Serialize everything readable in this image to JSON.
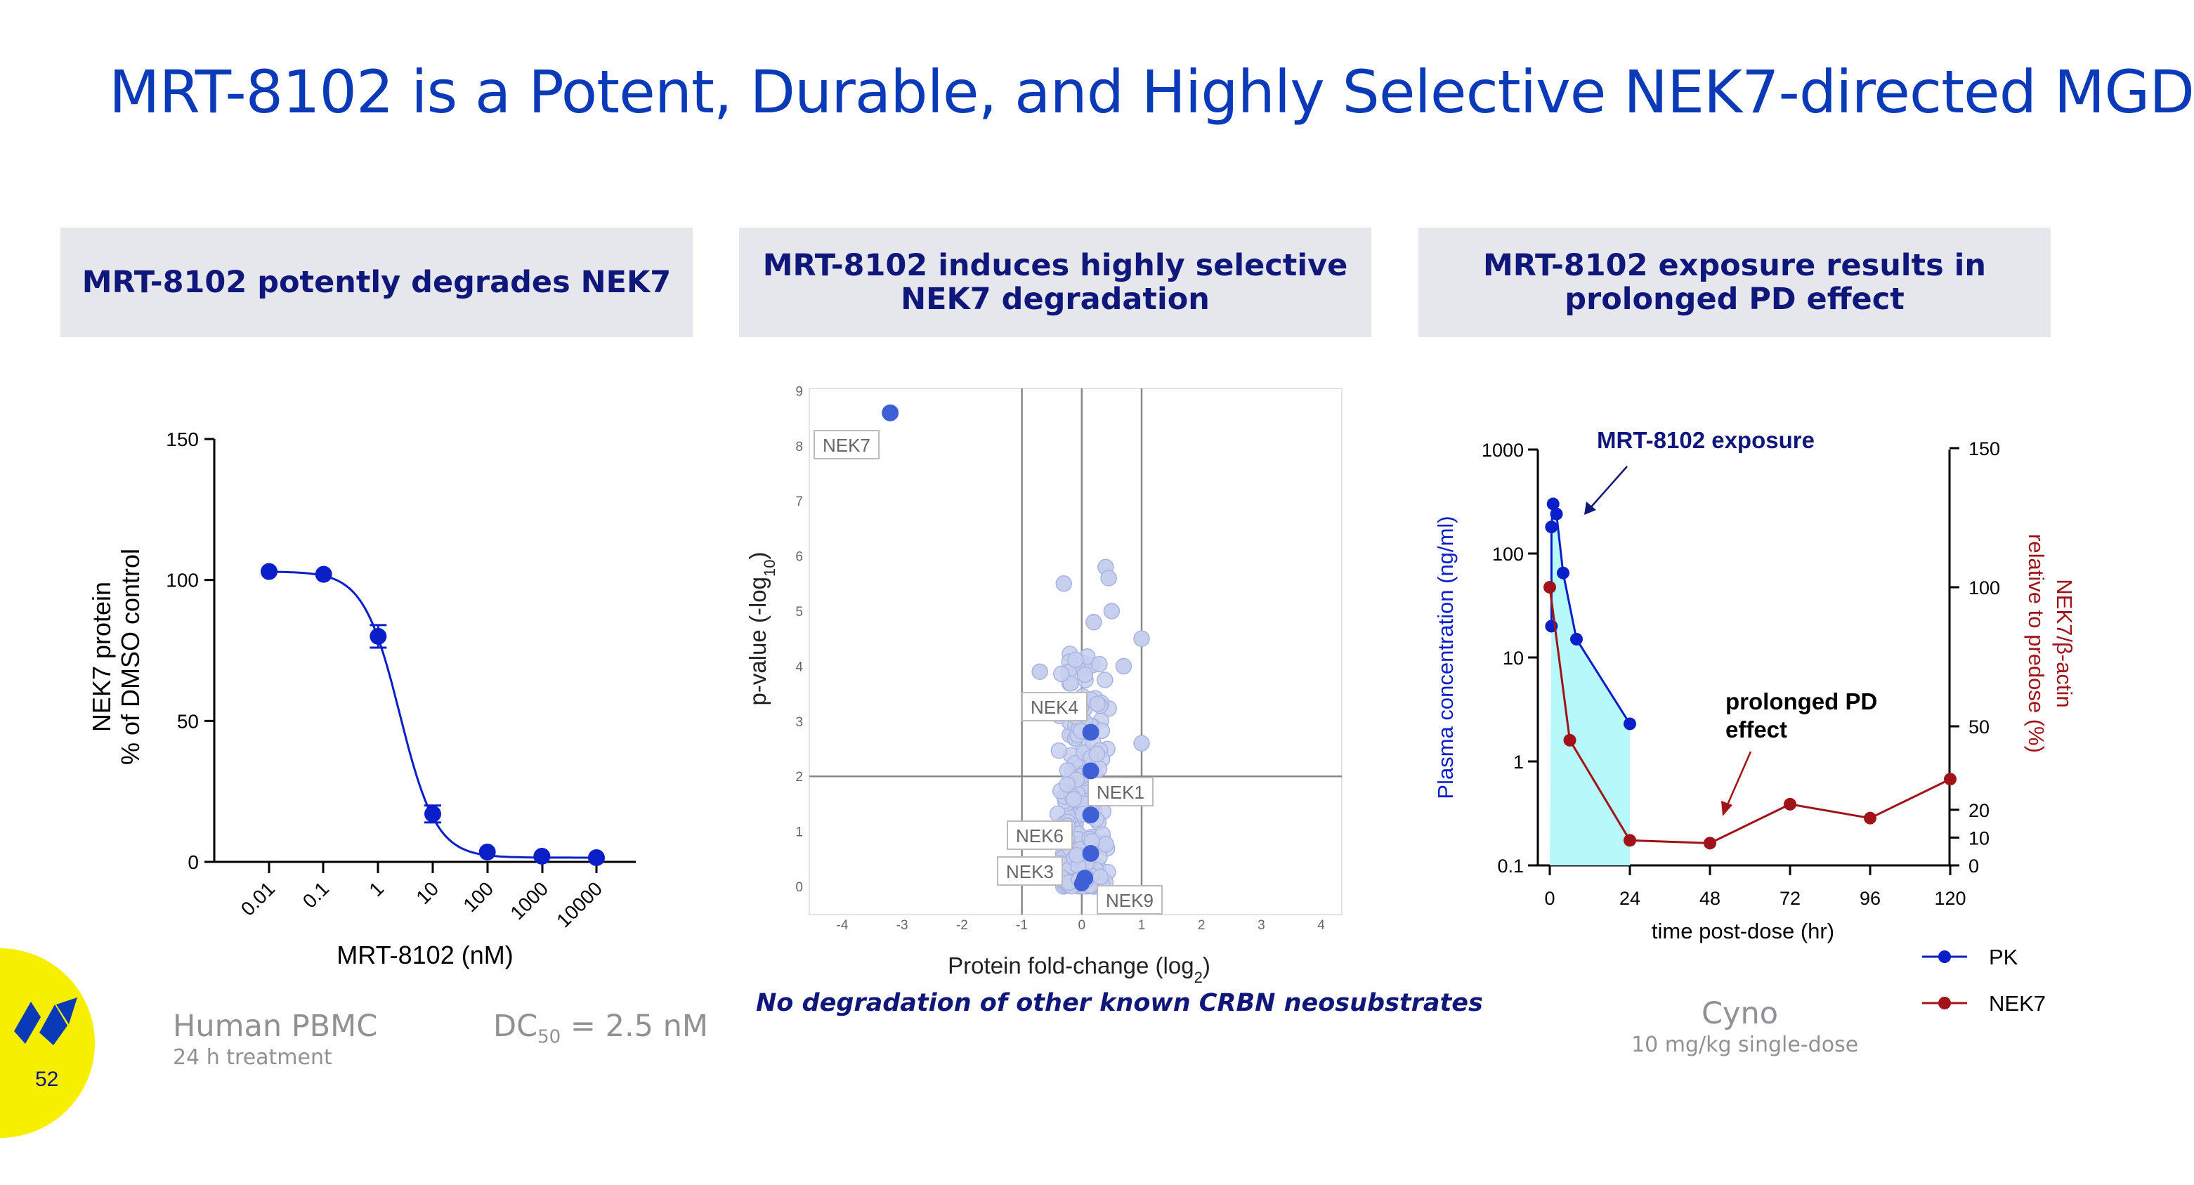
{
  "slide": {
    "title": "MRT-8102 is a Potent, Durable, and Highly Selective NEK7-directed MGD",
    "page_number": "52",
    "accent_color": "#0a3ab8",
    "panel_header_color": "#10177a",
    "logo_color": "#f6ef00"
  },
  "panels": {
    "left": {
      "header": "MRT-8102 potently degrades NEK7",
      "caption_main": "Human PBMC",
      "caption_sub": "24 h treatment",
      "dc_prefix": "DC",
      "dc_subscript": "50",
      "dc_value": " = 2.5 nM"
    },
    "middle": {
      "header": "MRT-8102 induces highly selective NEK7 degradation",
      "caption": "No degradation of other known CRBN neosubstrates"
    },
    "right": {
      "header": "MRT-8102 exposure results in prolonged PD effect",
      "caption_main": "Cyno",
      "caption_sub": "10 mg/kg single-dose"
    }
  },
  "chart_data": [
    {
      "type": "line",
      "id": "dose-response",
      "xlabel": "MRT-8102 (nM)",
      "ylabel_line1": "NEK7 protein",
      "ylabel_line2": "% of DMSO control",
      "x_scale": "log",
      "x_ticks": [
        "0.01",
        "0.1",
        "1",
        "10",
        "100",
        "1000",
        "10000"
      ],
      "y_ticks": [
        "0",
        "50",
        "100",
        "150"
      ],
      "ylim": [
        0,
        150
      ],
      "x": [
        0.01,
        0.1,
        1,
        10,
        100,
        1000,
        10000
      ],
      "values": [
        103,
        102,
        80,
        17,
        3.5,
        2,
        1.5
      ],
      "error": [
        0,
        0,
        4,
        3,
        0,
        0,
        0
      ],
      "fit": "sigmoid",
      "color": "#0b1fc8"
    },
    {
      "type": "scatter",
      "id": "volcano",
      "xlabel": "Protein fold-change (log",
      "xlabel_sub": "2",
      "xlabel_end": ")",
      "ylabel": "p-value (-log",
      "ylabel_sub": "10",
      "ylabel_end": ")",
      "xlim": [
        -4.4,
        4.4
      ],
      "ylim": [
        -0.3,
        9.2
      ],
      "x_ticks": [
        "-4",
        "-3",
        "-2",
        "-1",
        "0",
        "1",
        "2",
        "3",
        "4"
      ],
      "y_ticks": [
        "0",
        "1",
        "2",
        "3",
        "4",
        "5",
        "6",
        "7",
        "8",
        "9"
      ],
      "vlines": [
        -1,
        0,
        1
      ],
      "hlines": [
        2
      ],
      "highlighted": [
        {
          "label": "NEK7",
          "x": -3.2,
          "y": 8.6
        },
        {
          "label": "NEK4",
          "x": 0.15,
          "y": 2.8
        },
        {
          "label": "NEK1",
          "x": 0.15,
          "y": 2.1
        },
        {
          "label": "NEK6",
          "x": 0.15,
          "y": 1.3
        },
        {
          "label": "NEK3",
          "x": 0.15,
          "y": 0.6
        },
        {
          "label": "NEK9",
          "x": 0.05,
          "y": 0.15
        }
      ],
      "highlight_color": "#3e5fd6",
      "background_color": "#c7cfee"
    },
    {
      "type": "line",
      "id": "pk-pd",
      "xlabel": "time post-dose (hr)",
      "ylabel_left": "Plasma concentration (ng/ml)",
      "ylabel_right_line1": "NEK7/β-actin",
      "ylabel_right_line2": "relative to predose (%)",
      "x_ticks": [
        "0",
        "24",
        "48",
        "72",
        "96",
        "120"
      ],
      "xlim": [
        0,
        120
      ],
      "y_left_scale": "log",
      "y_left_ticks": [
        "0.1",
        "1",
        "10",
        "100",
        "1000"
      ],
      "ylim_left": [
        0.1,
        1000
      ],
      "y_right_ticks": [
        "0",
        "10",
        "20",
        "50",
        "100",
        "150"
      ],
      "ylim_right": [
        0,
        150
      ],
      "series": [
        {
          "name": "PK",
          "axis": "left",
          "color": "#0b1fc8",
          "x": [
            0.5,
            0.5,
            1,
            2,
            4,
            8,
            24
          ],
          "values": [
            20,
            180,
            300,
            240,
            65,
            15,
            2.3
          ]
        },
        {
          "name": "NEK7",
          "axis": "right",
          "color": "#a01318",
          "x": [
            0,
            6,
            24,
            48,
            72,
            96,
            120
          ],
          "values": [
            100,
            45,
            9,
            8,
            22,
            17,
            31
          ]
        }
      ],
      "annotations": [
        "MRT-8102 exposure",
        "prolonged PD",
        "effect"
      ],
      "shaded_color": "#b7f8fb"
    }
  ]
}
